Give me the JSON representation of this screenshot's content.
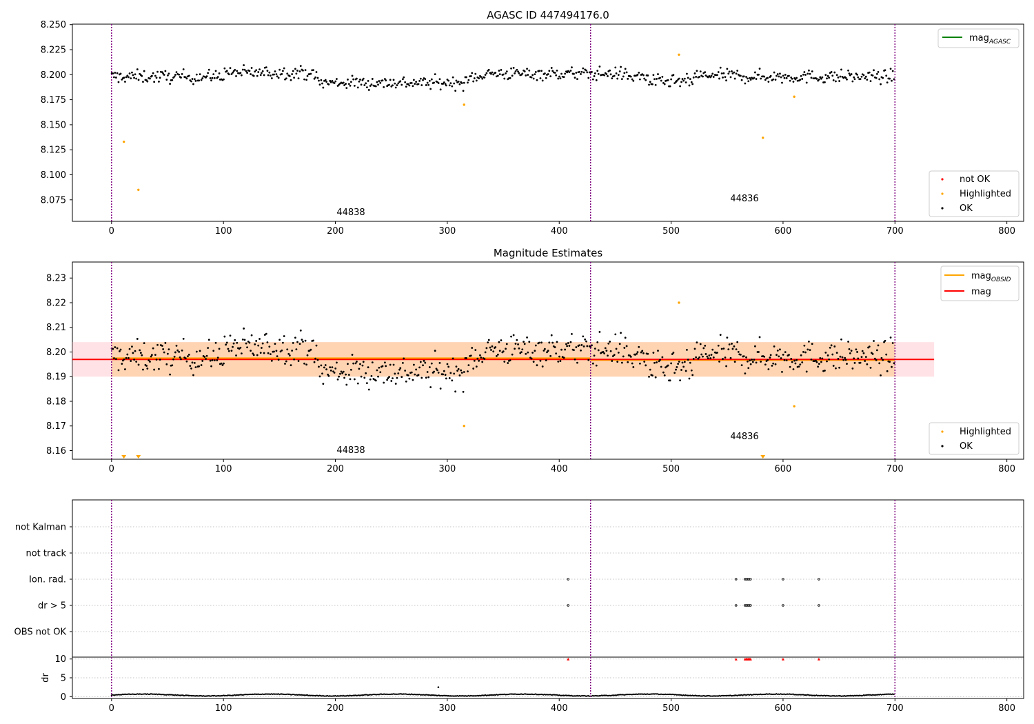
{
  "figure": {
    "panels": {
      "top": {
        "title": "AGASC ID 447494176.0",
        "legend_lines": [
          {
            "base": "mag",
            "sub": "AGASC",
            "color": "#008000"
          }
        ],
        "legend_points": [
          {
            "label": "not OK",
            "color": "#ff0000"
          },
          {
            "label": "Highlighted",
            "color": "#ffa500"
          },
          {
            "label": "OK",
            "color": "#000000"
          }
        ],
        "obsid_labels": [
          {
            "text": "44838",
            "x": 213,
            "y": 8.0605
          },
          {
            "text": "44836",
            "x": 564,
            "y": 8.0745
          }
        ]
      },
      "middle": {
        "title": "Magnitude Estimates",
        "legend_lines": [
          {
            "base": "mag",
            "sub": "OBSID",
            "color": "#ffa500"
          },
          {
            "base": "mag",
            "sub": "",
            "color": "#ff0000"
          }
        ],
        "legend_points": [
          {
            "label": "Highlighted",
            "color": "#ffa500"
          },
          {
            "label": "OK",
            "color": "#000000"
          }
        ],
        "obsid_labels": [
          {
            "text": "44838",
            "x": 213,
            "y": 8.1585
          },
          {
            "text": "44836",
            "x": 564,
            "y": 8.1647
          }
        ]
      },
      "flags": {
        "category_labels": [
          "not Kalman",
          "not track",
          "Ion. rad.",
          "dr > 5",
          "OBS not OK"
        ],
        "dr_ylabel": "dr",
        "dr_ticks": [
          "10",
          "5",
          "0"
        ]
      }
    },
    "x_ticks": [
      "0",
      "100",
      "200",
      "300",
      "400",
      "500",
      "600",
      "700",
      "800"
    ],
    "top_y_ticks": [
      "8.250",
      "8.225",
      "8.200",
      "8.175",
      "8.150",
      "8.125",
      "8.100",
      "8.075"
    ],
    "mid_y_ticks": [
      "8.23",
      "8.22",
      "8.21",
      "8.20",
      "8.19",
      "8.18",
      "8.17",
      "8.16"
    ]
  },
  "chart_data": [
    {
      "type": "scatter",
      "title": "AGASC ID 447494176.0",
      "xlim": [
        -35,
        815
      ],
      "ylim": [
        8.0535,
        8.2505
      ],
      "y_ticks": [
        8.25,
        8.225,
        8.2,
        8.175,
        8.15,
        8.125,
        8.1,
        8.075
      ],
      "obsid_boundaries": [
        0,
        428,
        700
      ],
      "series_ok": {
        "n_points": 700,
        "x_range": [
          0,
          700
        ],
        "y_mean": 8.197,
        "y_range": [
          8.18,
          8.217
        ]
      },
      "highlighted_points": [
        {
          "x": 11,
          "y": 8.133
        },
        {
          "x": 24,
          "y": 8.085
        },
        {
          "x": 315,
          "y": 8.17
        },
        {
          "x": 507,
          "y": 8.22
        },
        {
          "x": 582,
          "y": 8.137
        },
        {
          "x": 610,
          "y": 8.178
        }
      ]
    },
    {
      "type": "scatter",
      "title": "Magnitude Estimates",
      "xlim": [
        -35,
        815
      ],
      "ylim": [
        8.1565,
        8.2365
      ],
      "y_ticks": [
        8.23,
        8.22,
        8.21,
        8.2,
        8.19,
        8.18,
        8.17,
        8.16
      ],
      "mag": 8.197,
      "mag_obsid": [
        {
          "x_range": [
            0,
            428
          ],
          "y": 8.1975
        },
        {
          "x_range": [
            428,
            700
          ],
          "y": 8.1967
        }
      ],
      "band_1sigma": [
        8.19,
        8.204
      ],
      "highlighted_points": [
        {
          "x": 507,
          "y": 8.22
        },
        {
          "x": 315,
          "y": 8.17
        },
        {
          "x": 610,
          "y": 8.178
        }
      ],
      "off_scale_markers_x": [
        11,
        24,
        582
      ]
    },
    {
      "type": "scatter",
      "title": "",
      "xlim": [
        -35,
        815
      ],
      "categories": [
        "not Kalman",
        "not track",
        "Ion. rad.",
        "dr > 5",
        "OBS not OK"
      ],
      "flag_ion_rad_x": [
        408,
        558,
        566,
        567,
        568,
        569,
        570,
        571,
        600,
        632
      ],
      "flag_dr5_x": [
        408,
        558,
        566,
        567,
        568,
        569,
        570,
        571,
        600,
        632
      ],
      "dr_ylim": [
        -0.5,
        10.5
      ],
      "dr_points": [
        {
          "x": 292,
          "y": 2.5
        }
      ],
      "dr_clipped_x": [
        408,
        558,
        566,
        567,
        568,
        569,
        570,
        571,
        600,
        632
      ]
    }
  ]
}
